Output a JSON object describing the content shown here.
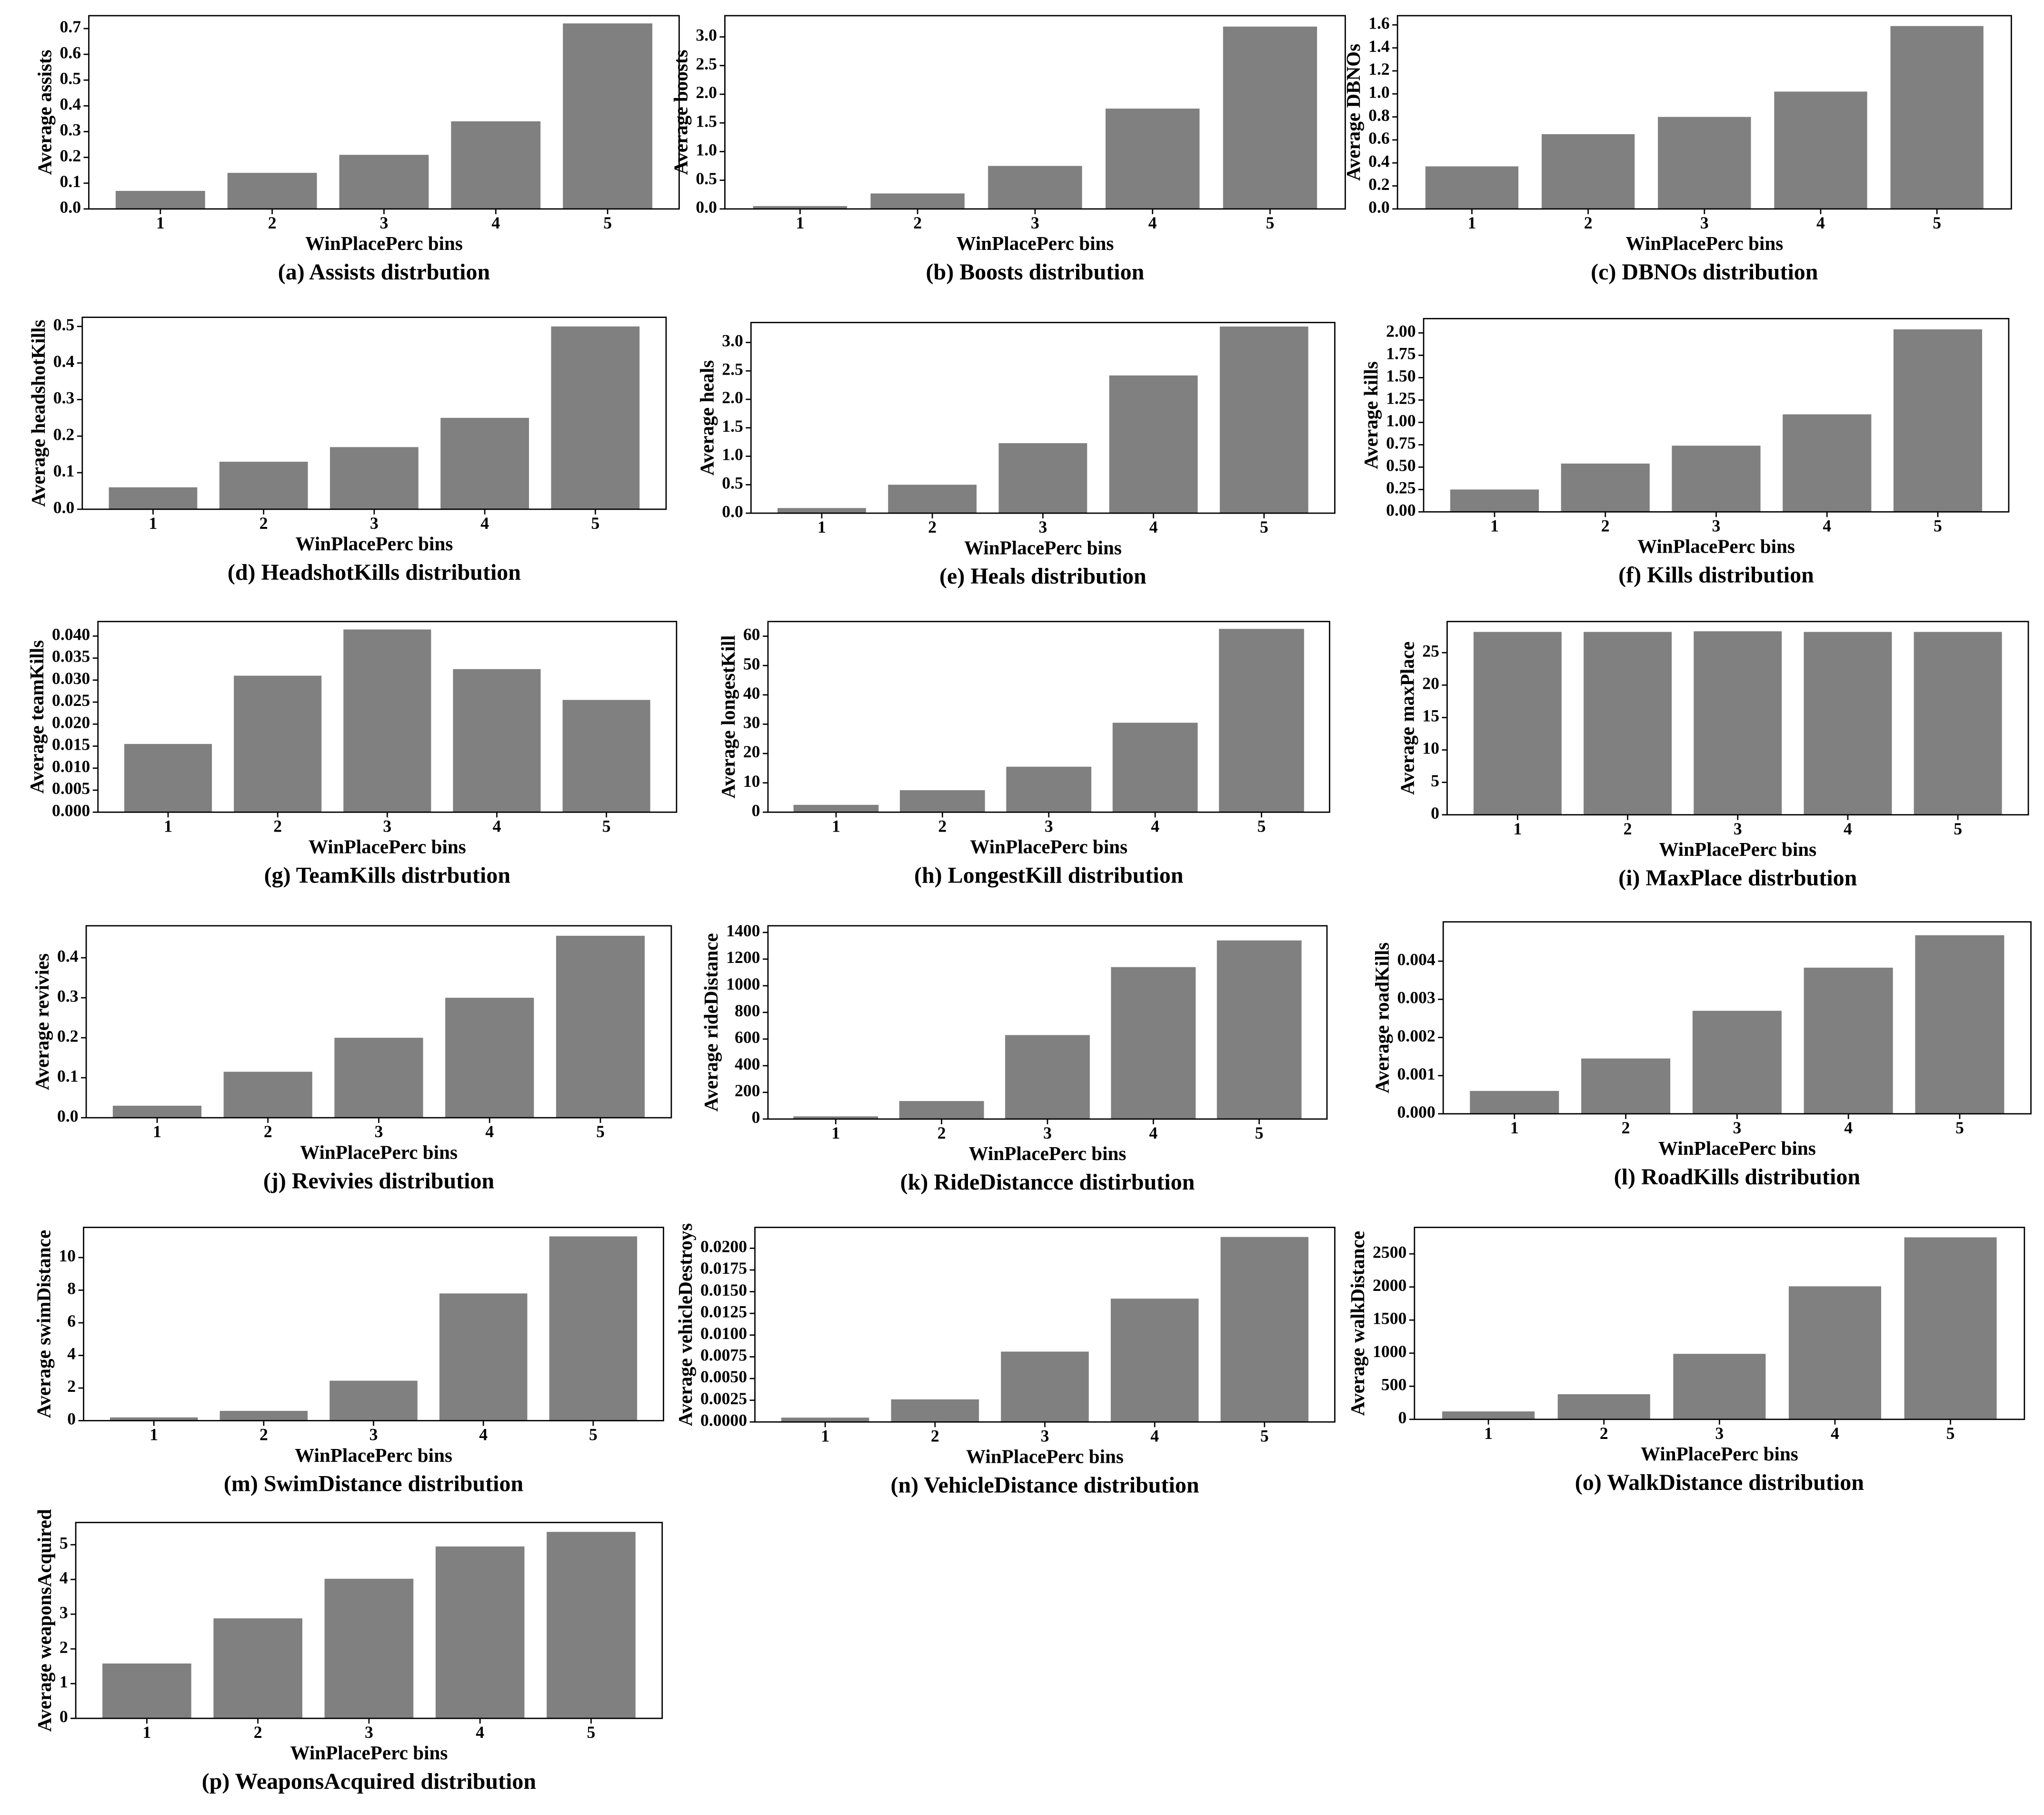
{
  "chart_data": [
    {
      "type": "bar",
      "title": "(a) Assists distrbution",
      "x_label": "WinPlacePerc bins",
      "y_label": "Average assists",
      "categories": [
        "1",
        "2",
        "3",
        "4",
        "5"
      ],
      "values": [
        0.07,
        0.14,
        0.21,
        0.34,
        0.72
      ],
      "color": "#808080",
      "ylim": [
        0,
        0.75
      ],
      "yticks": [
        {
          "value": 0,
          "label": "0.0"
        },
        0.1,
        0.2,
        0.3,
        0.4,
        0.5,
        0.6,
        0.7
      ]
    },
    {
      "type": "bar",
      "title": "(b) Boosts distribution",
      "x_label": "WinPlacePerc bins",
      "y_label": "Average boosts",
      "categories": [
        "1",
        "2",
        "3",
        "4",
        "5"
      ],
      "values": [
        0.05,
        0.27,
        0.75,
        1.75,
        3.18
      ],
      "color": "#808080",
      "ylim": [
        0,
        3.37
      ],
      "yticks": [
        {
          "value": 0,
          "label": "0.0"
        },
        0.5,
        {
          "value": 1,
          "label": "1.0"
        },
        1.5,
        {
          "value": 2,
          "label": "2.0"
        },
        2.5,
        {
          "value": 3,
          "label": "3.0"
        }
      ]
    },
    {
      "type": "bar",
      "title": "(c) DBNOs distribution",
      "x_label": "WinPlacePerc bins",
      "y_label": "Average DBNOs",
      "categories": [
        "1",
        "2",
        "3",
        "4",
        "5"
      ],
      "values": [
        0.37,
        0.65,
        0.8,
        1.02,
        1.59
      ],
      "color": "#808080",
      "ylim": [
        0,
        1.68
      ],
      "yticks": [
        {
          "value": 0,
          "label": "0.0"
        },
        0.2,
        0.4,
        0.6,
        0.8,
        {
          "value": 1,
          "label": "1.0"
        },
        1.2,
        1.4,
        1.6
      ]
    },
    {
      "type": "bar",
      "title": "(d) HeadshotKills distribution",
      "x_label": "WinPlacePerc bins",
      "y_label": "Average headshotKills",
      "categories": [
        "1",
        "2",
        "3",
        "4",
        "5"
      ],
      "values": [
        0.06,
        0.13,
        0.17,
        0.25,
        0.5
      ],
      "color": "#808080",
      "ylim": [
        0,
        0.525
      ],
      "yticks": [
        {
          "value": 0,
          "label": "0.0"
        },
        0.1,
        0.2,
        0.3,
        0.4,
        0.5
      ]
    },
    {
      "type": "bar",
      "title": "(e) Heals distribution",
      "x_label": "WinPlacePerc bins",
      "y_label": "Average heals",
      "categories": [
        "1",
        "2",
        "3",
        "4",
        "5"
      ],
      "values": [
        0.09,
        0.5,
        1.23,
        2.42,
        3.28
      ],
      "color": "#808080",
      "ylim": [
        0,
        3.35
      ],
      "yticks": [
        {
          "value": 0,
          "label": "0.0"
        },
        0.5,
        {
          "value": 1,
          "label": "1.0"
        },
        1.5,
        {
          "value": 2,
          "label": "2.0"
        },
        2.5,
        {
          "value": 3,
          "label": "3.0"
        }
      ]
    },
    {
      "type": "bar",
      "title": "(f) Kills distribution",
      "x_label": "WinPlacePerc bins",
      "y_label": "Average kills",
      "categories": [
        "1",
        "2",
        "3",
        "4",
        "5"
      ],
      "values": [
        0.25,
        0.54,
        0.74,
        1.09,
        2.04
      ],
      "color": "#808080",
      "ylim": [
        0,
        2.16
      ],
      "yticks": [
        {
          "value": 0,
          "label": "0.00"
        },
        0.25,
        {
          "value": 0.5,
          "label": "0.50"
        },
        0.75,
        {
          "value": 1,
          "label": "1.00"
        },
        1.25,
        {
          "value": 1.5,
          "label": "1.50"
        },
        1.75,
        {
          "value": 2,
          "label": "2.00"
        }
      ]
    },
    {
      "type": "bar",
      "title": "(g) TeamKills distrbution",
      "x_label": "WinPlacePerc bins",
      "y_label": "Average teamKills",
      "categories": [
        "1",
        "2",
        "3",
        "4",
        "5"
      ],
      "values": [
        0.0155,
        0.031,
        0.0415,
        0.0325,
        0.0255
      ],
      "color": "#808080",
      "ylim": [
        0,
        0.0433
      ],
      "yticks": [
        {
          "value": 0,
          "label": "0.000"
        },
        0.005,
        {
          "value": 0.01,
          "label": "0.010"
        },
        0.015,
        {
          "value": 0.02,
          "label": "0.020"
        },
        0.025,
        {
          "value": 0.03,
          "label": "0.030"
        },
        0.035,
        {
          "value": 0.04,
          "label": "0.040"
        }
      ]
    },
    {
      "type": "bar",
      "title": "(h) LongestKill distribution",
      "x_label": "WinPlacePerc bins",
      "y_label": "Average longestKill",
      "categories": [
        "1",
        "2",
        "3",
        "4",
        "5"
      ],
      "values": [
        2.5,
        7.5,
        15.5,
        30.5,
        62.5
      ],
      "color": "#808080",
      "ylim": [
        0,
        65
      ],
      "yticks": [
        0,
        10,
        20,
        30,
        40,
        50,
        60
      ]
    },
    {
      "type": "bar",
      "title": "(i) MaxPlace distrbution",
      "x_label": "WinPlacePerc bins",
      "y_label": "Average maxPlace",
      "categories": [
        "1",
        "2",
        "3",
        "4",
        "5"
      ],
      "values": [
        28.2,
        28.2,
        28.3,
        28.2,
        28.2
      ],
      "color": "#808080",
      "ylim": [
        0,
        29.8
      ],
      "yticks": [
        0,
        5,
        10,
        15,
        20,
        25
      ]
    },
    {
      "type": "bar",
      "title": "(j) Revivies distribution",
      "x_label": "WinPlacePerc bins",
      "y_label": "Average revivies",
      "categories": [
        "1",
        "2",
        "3",
        "4",
        "5"
      ],
      "values": [
        0.03,
        0.115,
        0.2,
        0.3,
        0.455
      ],
      "color": "#808080",
      "ylim": [
        0,
        0.48
      ],
      "yticks": [
        {
          "value": 0,
          "label": "0.0"
        },
        0.1,
        0.2,
        0.3,
        0.4
      ]
    },
    {
      "type": "bar",
      "title": "(k) RideDistancce distirbution",
      "x_label": "WinPlacePerc bins",
      "y_label": "Average rideDistance",
      "categories": [
        "1",
        "2",
        "3",
        "4",
        "5"
      ],
      "values": [
        20,
        135,
        630,
        1140,
        1340
      ],
      "color": "#808080",
      "ylim": [
        0,
        1450
      ],
      "yticks": [
        0,
        200,
        400,
        600,
        800,
        1000,
        1200,
        1400
      ]
    },
    {
      "type": "bar",
      "title": "(l) RoadKills distribution",
      "x_label": "WinPlacePerc bins",
      "y_label": "Average roadKills",
      "categories": [
        "1",
        "2",
        "3",
        "4",
        "5"
      ],
      "values": [
        0.0006,
        0.00145,
        0.0027,
        0.00383,
        0.00468
      ],
      "color": "#808080",
      "ylim": [
        0,
        0.00503
      ],
      "yticks": [
        {
          "value": 0,
          "label": "0.000"
        },
        0.001,
        0.002,
        0.003,
        0.004
      ]
    },
    {
      "type": "bar",
      "title": "(m) SwimDistance distribution",
      "x_label": "WinPlacePerc bins",
      "y_label": "Average swimDistance",
      "categories": [
        "1",
        "2",
        "3",
        "4",
        "5"
      ],
      "values": [
        0.2,
        0.6,
        2.45,
        7.8,
        11.3
      ],
      "color": "#808080",
      "ylim": [
        0,
        11.85
      ],
      "yticks": [
        0,
        2,
        4,
        6,
        8,
        10
      ]
    },
    {
      "type": "bar",
      "title": "(n) VehicleDistance distribution",
      "x_label": "WinPlacePerc bins",
      "y_label": "Average vehicleDestroys",
      "categories": [
        "1",
        "2",
        "3",
        "4",
        "5"
      ],
      "values": [
        0.0005,
        0.0026,
        0.0081,
        0.0142,
        0.0213
      ],
      "color": "#808080",
      "ylim": [
        0,
        0.0224
      ],
      "yticks": [
        {
          "value": 0,
          "label": "0.0000"
        },
        0.0025,
        {
          "value": 0.005,
          "label": "0.0050"
        },
        0.0075,
        {
          "value": 0.01,
          "label": "0.0100"
        },
        0.0125,
        {
          "value": 0.015,
          "label": "0.0150"
        },
        0.0175,
        {
          "value": 0.02,
          "label": "0.0200"
        }
      ]
    },
    {
      "type": "bar",
      "title": "(o) WalkDistance distribution",
      "x_label": "WinPlacePerc bins",
      "y_label": "Average walkDistance",
      "categories": [
        "1",
        "2",
        "3",
        "4",
        "5"
      ],
      "values": [
        120,
        380,
        990,
        2010,
        2750
      ],
      "color": "#808080",
      "ylim": [
        0,
        2900
      ],
      "yticks": [
        0,
        500,
        1000,
        1500,
        2000,
        2500
      ]
    },
    {
      "type": "bar",
      "title": "(p) WeaponsAcquired distribution",
      "x_label": "WinPlacePerc bins",
      "y_label": "Average weaponsAcquired",
      "categories": [
        "1",
        "2",
        "3",
        "4",
        "5"
      ],
      "values": [
        1.58,
        2.88,
        4.02,
        4.95,
        5.37
      ],
      "color": "#808080",
      "ylim": [
        0,
        5.64
      ],
      "yticks": [
        0,
        1,
        2,
        3,
        4,
        5
      ]
    }
  ]
}
